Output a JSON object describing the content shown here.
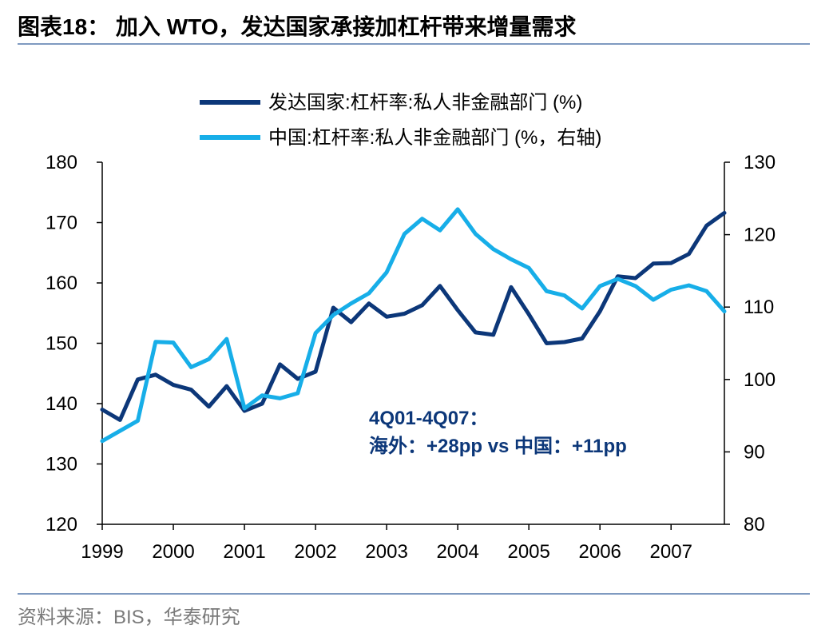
{
  "header": {
    "title": "图表18： 加入 WTO，发达国家承接加杠杆带来增量需求"
  },
  "footer": {
    "source_label": "资料来源：",
    "source_text": "BIS，华泰研究"
  },
  "colors": {
    "developed": "#0c3779",
    "china": "#17aee8",
    "axis": "#000000",
    "annotation": "#0c3779",
    "rule": "#7f9ac0"
  },
  "chart_data": {
    "type": "line",
    "title": "",
    "x_ticks": [
      "1999",
      "2000",
      "2001",
      "2002",
      "2003",
      "2004",
      "2005",
      "2006",
      "2007"
    ],
    "x_range": [
      1999.0,
      2007.75
    ],
    "y_left": {
      "range": [
        120,
        180
      ],
      "ticks": [
        "120",
        "130",
        "140",
        "150",
        "160",
        "170",
        "180"
      ]
    },
    "y_right": {
      "range": [
        80,
        130
      ],
      "ticks": [
        "80",
        "90",
        "100",
        "110",
        "120",
        "130"
      ]
    },
    "legend_position": "top",
    "annotation": {
      "line1": "4Q01-4Q07：",
      "line2": "海外：+28pp  vs 中国：+11pp",
      "position": "center-left"
    },
    "series": [
      {
        "name": "发达国家:杠杆率:私人非金融部门 (%)",
        "axis": "left",
        "x": [
          1999.0,
          1999.25,
          1999.5,
          1999.75,
          2000.0,
          2000.25,
          2000.5,
          2000.75,
          2001.0,
          2001.25,
          2001.5,
          2001.75,
          2002.0,
          2002.25,
          2002.5,
          2002.75,
          2003.0,
          2003.25,
          2003.5,
          2003.75,
          2004.0,
          2004.25,
          2004.5,
          2004.75,
          2005.0,
          2005.25,
          2005.5,
          2005.75,
          2006.0,
          2006.25,
          2006.5,
          2006.75,
          2007.0,
          2007.25,
          2007.5,
          2007.75
        ],
        "values": [
          139.0,
          137.3,
          144.0,
          144.8,
          143.1,
          142.3,
          139.5,
          142.9,
          138.8,
          140.0,
          146.5,
          144.1,
          145.3,
          155.9,
          153.5,
          156.6,
          154.4,
          154.9,
          156.3,
          159.5,
          155.5,
          151.8,
          151.4,
          159.3,
          154.8,
          150.0,
          150.2,
          150.8,
          155.3,
          161.1,
          160.8,
          163.2,
          163.3,
          164.8,
          169.5,
          171.6
        ]
      },
      {
        "name": "中国:杠杆率:私人非金融部门 (%，右轴)",
        "axis": "right",
        "x": [
          1999.0,
          1999.25,
          1999.5,
          1999.75,
          2000.0,
          2000.25,
          2000.5,
          2000.75,
          2001.0,
          2001.25,
          2001.5,
          2001.75,
          2002.0,
          2002.25,
          2002.5,
          2002.75,
          2003.0,
          2003.25,
          2003.5,
          2003.75,
          2004.0,
          2004.25,
          2004.5,
          2004.75,
          2005.0,
          2005.25,
          2005.5,
          2005.75,
          2006.0,
          2006.25,
          2006.5,
          2006.75,
          2007.0,
          2007.25,
          2007.5,
          2007.75
        ],
        "values": [
          91.5,
          92.9,
          94.3,
          105.2,
          105.1,
          101.7,
          102.8,
          105.6,
          96.0,
          97.8,
          97.4,
          98.1,
          106.4,
          108.9,
          110.5,
          111.9,
          114.8,
          120.1,
          122.2,
          120.6,
          123.5,
          120.1,
          118.0,
          116.6,
          115.4,
          112.2,
          111.6,
          109.8,
          112.9,
          113.9,
          112.9,
          111.0,
          112.4,
          113.0,
          112.2,
          109.4
        ]
      }
    ]
  }
}
